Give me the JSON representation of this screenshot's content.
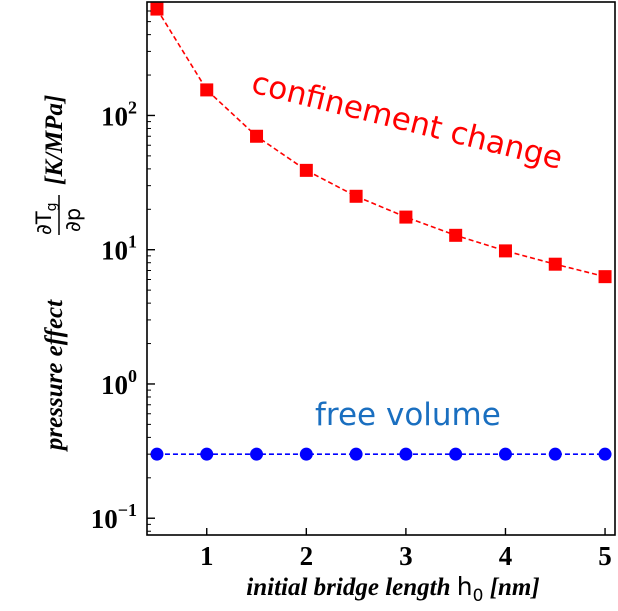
{
  "chart_data": {
    "type": "line",
    "x": [
      0.5,
      1.0,
      1.5,
      2.0,
      2.5,
      3.0,
      3.5,
      4.0,
      4.5,
      5.0
    ],
    "series": [
      {
        "name": "confinement change",
        "color": "#ff0000",
        "marker": "square",
        "line_style": "dashed",
        "values": [
          620,
          155,
          70,
          39,
          25,
          17.5,
          12.8,
          9.8,
          7.8,
          6.3
        ]
      },
      {
        "name": "free volume",
        "color": "#0000ff",
        "marker": "circle",
        "line_style": "dashed",
        "values": [
          0.3,
          0.3,
          0.3,
          0.3,
          0.3,
          0.3,
          0.3,
          0.3,
          0.3,
          0.3
        ]
      }
    ],
    "xlim": [
      0.4,
      5.1
    ],
    "ylim": [
      0.075,
      700
    ],
    "yscale": "log",
    "xticks": [
      1,
      2,
      3,
      4,
      5
    ],
    "yticks": [
      {
        "base": "10",
        "exp": "−1",
        "value": 0.1
      },
      {
        "base": "10",
        "exp": "0",
        "value": 1
      },
      {
        "base": "10",
        "exp": "1",
        "value": 10
      },
      {
        "base": "10",
        "exp": "2",
        "value": 100
      }
    ],
    "xlabel": {
      "prefix": "initial bridge length ",
      "symbol": "h",
      "subscript": "0",
      "suffix": " [nm]"
    },
    "ylabel": {
      "prefix": "pressure effect ",
      "fraction": "∂T_g / ∂p",
      "suffix": " [K/MPa]"
    },
    "annotations": [
      {
        "text": "confinement change",
        "color": "#ff0000"
      },
      {
        "text": "free volume",
        "color": "#1a6fc0"
      }
    ],
    "grid": false
  }
}
